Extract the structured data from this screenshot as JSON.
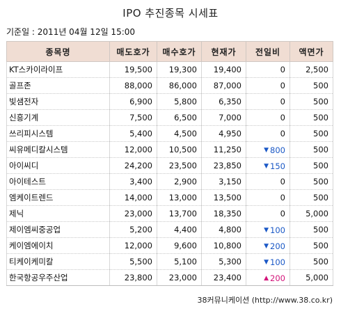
{
  "title": "IPO 추진종목 시세표",
  "date_label": "기준일 : 2011년 04월 12일 15:00",
  "headers": [
    "종목명",
    "매도호가",
    "매수호가",
    "현재가",
    "전일비",
    "액면가"
  ],
  "rows": [
    {
      "name": "KT스카이라이프",
      "ask": "19,500",
      "bid": "19,300",
      "price": "19,400",
      "change": "0",
      "dir": "",
      "par": "2,500"
    },
    {
      "name": "골프존",
      "ask": "88,000",
      "bid": "86,000",
      "price": "87,000",
      "change": "0",
      "dir": "",
      "par": "500"
    },
    {
      "name": "빛샘전자",
      "ask": "6,900",
      "bid": "5,800",
      "price": "6,350",
      "change": "0",
      "dir": "",
      "par": "500"
    },
    {
      "name": "신흥기계",
      "ask": "7,500",
      "bid": "6,500",
      "price": "7,000",
      "change": "0",
      "dir": "",
      "par": "500"
    },
    {
      "name": "쓰리피시스템",
      "ask": "5,400",
      "bid": "4,500",
      "price": "4,950",
      "change": "0",
      "dir": "",
      "par": "500"
    },
    {
      "name": "씨유메디칼시스템",
      "ask": "12,000",
      "bid": "10,500",
      "price": "11,250",
      "change": "800",
      "dir": "down",
      "par": "500"
    },
    {
      "name": "아이씨디",
      "ask": "24,200",
      "bid": "23,500",
      "price": "23,850",
      "change": "150",
      "dir": "down",
      "par": "500"
    },
    {
      "name": "아이테스트",
      "ask": "3,400",
      "bid": "2,900",
      "price": "3,150",
      "change": "0",
      "dir": "",
      "par": "500"
    },
    {
      "name": "엠케이트렌드",
      "ask": "14,000",
      "bid": "13,000",
      "price": "13,500",
      "change": "0",
      "dir": "",
      "par": "500"
    },
    {
      "name": "제닉",
      "ask": "23,000",
      "bid": "13,700",
      "price": "18,350",
      "change": "0",
      "dir": "",
      "par": "5,000"
    },
    {
      "name": "제이엠씨중공업",
      "ask": "5,200",
      "bid": "4,400",
      "price": "4,800",
      "change": "100",
      "dir": "down",
      "par": "500"
    },
    {
      "name": "케이엠에이치",
      "ask": "12,000",
      "bid": "9,600",
      "price": "10,800",
      "change": "200",
      "dir": "down",
      "par": "500"
    },
    {
      "name": "티케이케미칼",
      "ask": "5,500",
      "bid": "5,100",
      "price": "5,300",
      "change": "100",
      "dir": "down",
      "par": "500"
    },
    {
      "name": "한국항공우주산업",
      "ask": "23,800",
      "bid": "23,000",
      "price": "23,400",
      "change": "200",
      "dir": "up",
      "par": "5,000"
    }
  ],
  "source": "38커뮤니케이션 (http://www.38.co.kr)"
}
